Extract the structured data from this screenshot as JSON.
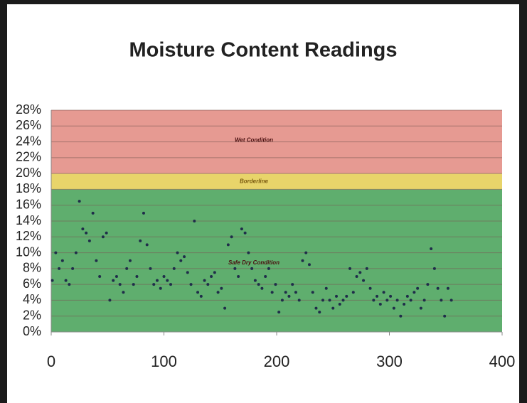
{
  "chart_data": {
    "type": "scatter",
    "title": "Moisture Content Readings",
    "bands": [
      {
        "label": "Safe Dry Condition",
        "from": 0,
        "to": 18,
        "color": "#5fae6e"
      },
      {
        "label": "Borderline",
        "from": 18,
        "to": 20,
        "color": "#e8d46a"
      },
      {
        "label": "Wet Condition",
        "from": 20,
        "to": 28,
        "color": "#e69a92"
      }
    ],
    "x": [
      1,
      4,
      7,
      10,
      13,
      16,
      19,
      22,
      25,
      28,
      31,
      34,
      37,
      40,
      43,
      46,
      49,
      52,
      55,
      58,
      61,
      64,
      67,
      70,
      73,
      76,
      79,
      82,
      85,
      88,
      91,
      94,
      97,
      100,
      103,
      106,
      109,
      112,
      115,
      118,
      121,
      124,
      127,
      130,
      133,
      136,
      139,
      142,
      145,
      148,
      151,
      154,
      157,
      160,
      163,
      166,
      169,
      172,
      175,
      178,
      181,
      184,
      187,
      190,
      193,
      196,
      199,
      202,
      205,
      208,
      211,
      214,
      217,
      220,
      223,
      226,
      229,
      232,
      235,
      238,
      241,
      244,
      247,
      250,
      253,
      256,
      259,
      262,
      265,
      268,
      271,
      274,
      277,
      280,
      283,
      286,
      289,
      292,
      295,
      298,
      301,
      304,
      307,
      310,
      313,
      316,
      319,
      322,
      325,
      328,
      331,
      334,
      337,
      340,
      343,
      346,
      349,
      352,
      355
    ],
    "values": [
      6.5,
      10,
      8,
      9,
      6.5,
      6,
      8,
      10,
      16.5,
      13,
      12.5,
      11.5,
      15,
      9,
      7,
      12,
      12.5,
      4,
      6.5,
      7,
      6,
      5,
      8,
      9,
      6,
      7,
      11.5,
      15,
      11,
      8,
      6,
      6.5,
      5.5,
      7,
      6.5,
      6,
      8,
      10,
      9,
      9.5,
      7.5,
      6,
      14,
      5,
      4.5,
      6.5,
      6,
      7,
      7.5,
      5,
      5.5,
      3,
      11,
      12,
      8,
      7,
      13,
      12.5,
      10,
      8,
      6.5,
      6,
      5.5,
      7,
      8,
      5,
      6,
      2.5,
      4,
      5,
      4.5,
      6,
      5,
      4,
      9,
      10,
      8.5,
      5,
      3,
      2.5,
      4,
      5.5,
      4,
      3,
      4.5,
      3.5,
      4,
      4.5,
      8,
      5,
      7,
      7.5,
      6.5,
      8,
      5.5,
      4,
      4.5,
      3.5,
      5,
      4,
      4.5,
      3,
      4,
      2,
      3.5,
      4.5,
      4,
      5,
      5.5,
      3,
      4,
      6,
      10.5,
      8,
      5.5,
      4,
      2,
      5.5,
      4
    ],
    "color": "#1f2d4a",
    "xlim": [
      0,
      400
    ],
    "xticks": [
      0,
      100,
      200,
      300,
      400
    ],
    "ylim": [
      0,
      28
    ],
    "yticks": [
      {
        "value": 0,
        "label": "0%"
      },
      {
        "value": 2,
        "label": "2%"
      },
      {
        "value": 4,
        "label": "4%"
      },
      {
        "value": 6,
        "label": "6%"
      },
      {
        "value": 8,
        "label": "8%"
      },
      {
        "value": 10,
        "label": "10%"
      },
      {
        "value": 12,
        "label": "12%"
      },
      {
        "value": 14,
        "label": "14%"
      },
      {
        "value": 16,
        "label": "16%"
      },
      {
        "value": 18,
        "label": "18%"
      },
      {
        "value": 20,
        "label": "20%"
      },
      {
        "value": 22,
        "label": "22%"
      },
      {
        "value": 24,
        "label": "24%"
      },
      {
        "value": 26,
        "label": "26%"
      },
      {
        "value": 28,
        "label": "28%"
      }
    ],
    "grid": true
  }
}
